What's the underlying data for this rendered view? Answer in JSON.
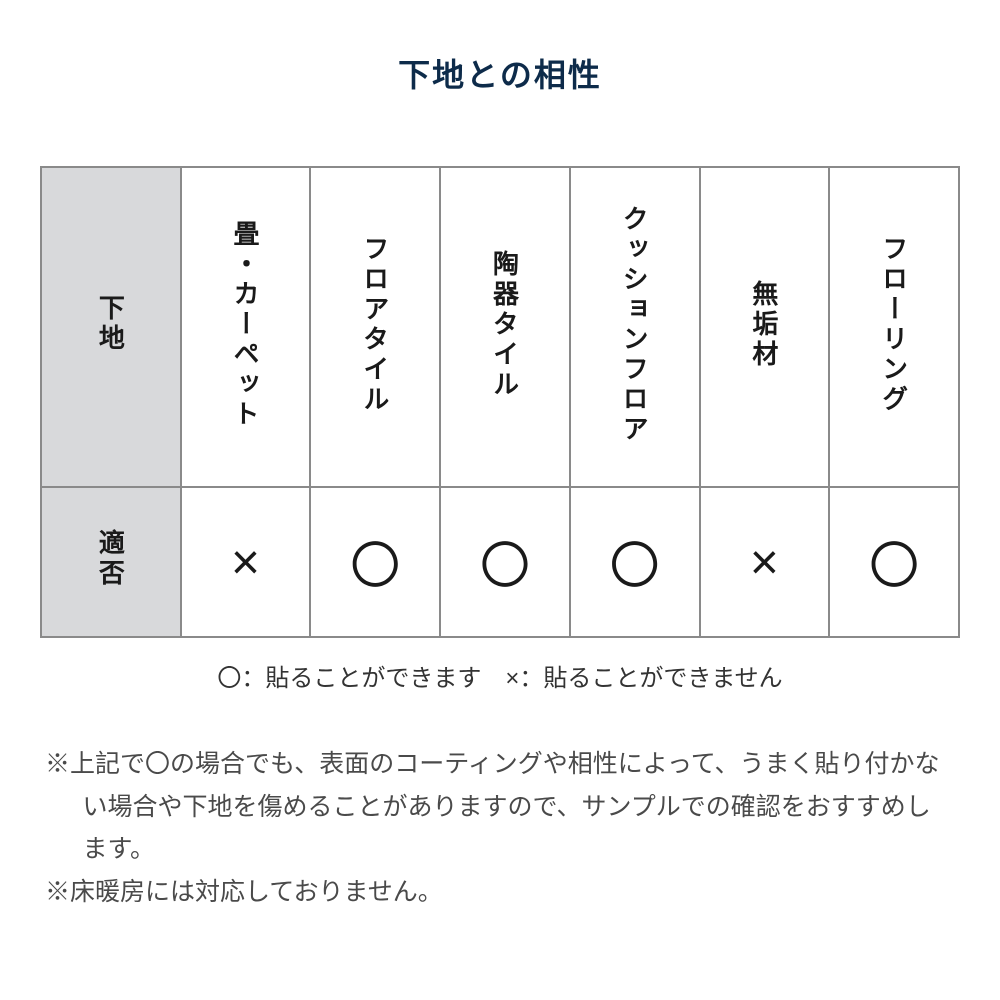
{
  "title": "下地との相性",
  "table": {
    "row_headers": [
      "下地",
      "適否"
    ],
    "columns": [
      "畳・カーペット",
      "フロアタイル",
      "陶器タイル",
      "クッションフロア",
      "無垢材",
      "フローリング"
    ],
    "results": [
      "×",
      "〇",
      "〇",
      "〇",
      "×",
      "〇"
    ],
    "header_bg": "#d8d9db",
    "border_color": "#8a8a8a"
  },
  "legend": "〇：貼ることができます　×：貼ることができません",
  "notes": [
    "※上記で〇の場合でも、表面のコーティングや相性によって、うまく貼り付かない場合や下地を傷めることがありますので、サンプルでの確認をおすすめします。",
    "※床暖房には対応しておりません。"
  ],
  "colors": {
    "title": "#0d2b4a",
    "text": "#1a1a1a",
    "notes": "#4a4a4a",
    "background": "#ffffff"
  }
}
